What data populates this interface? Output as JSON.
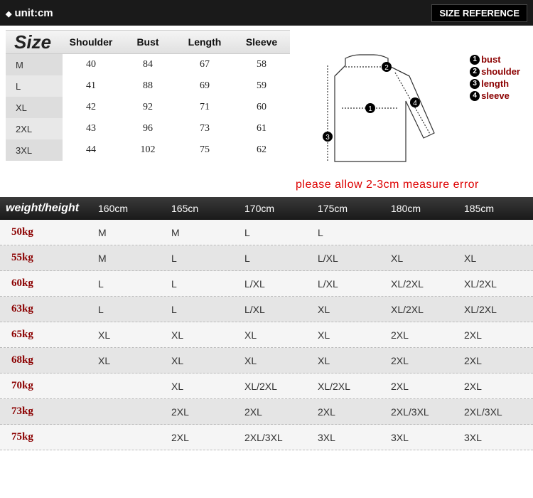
{
  "header": {
    "unit_label": "unit:cm",
    "size_reference": "SIZE REFERENCE"
  },
  "size_table": {
    "title": "Size",
    "columns": [
      "Shoulder",
      "Bust",
      "Length",
      "Sleeve"
    ],
    "rows": [
      {
        "size": "M",
        "shoulder": "40",
        "bust": "84",
        "length": "67",
        "sleeve": "58"
      },
      {
        "size": "L",
        "shoulder": "41",
        "bust": "88",
        "length": "69",
        "sleeve": "59"
      },
      {
        "size": "XL",
        "shoulder": "42",
        "bust": "92",
        "length": "71",
        "sleeve": "60"
      },
      {
        "size": "2XL",
        "shoulder": "43",
        "bust": "96",
        "length": "73",
        "sleeve": "61"
      },
      {
        "size": "3XL",
        "shoulder": "44",
        "bust": "102",
        "length": "75",
        "sleeve": "62"
      }
    ]
  },
  "legend": {
    "items": [
      {
        "num": "1",
        "label": "bust"
      },
      {
        "num": "2",
        "label": "shoulder"
      },
      {
        "num": "3",
        "label": "length"
      },
      {
        "num": "4",
        "label": "sleeve"
      }
    ]
  },
  "error_note": "please allow 2-3cm measure error",
  "weight_height": {
    "title": "weight/height",
    "heights": [
      "160cm",
      "165cn",
      "170cm",
      "175cm",
      "180cm",
      "185cm"
    ],
    "rows": [
      {
        "weight": "50kg",
        "cells": [
          "M",
          "M",
          "L",
          "L",
          "",
          ""
        ]
      },
      {
        "weight": "55kg",
        "cells": [
          "M",
          "L",
          "L",
          "L/XL",
          "XL",
          "XL"
        ]
      },
      {
        "weight": "60kg",
        "cells": [
          "L",
          "L",
          "L/XL",
          "L/XL",
          "XL/2XL",
          "XL/2XL"
        ]
      },
      {
        "weight": "63kg",
        "cells": [
          "L",
          "L",
          "L/XL",
          "XL",
          "XL/2XL",
          "XL/2XL"
        ]
      },
      {
        "weight": "65kg",
        "cells": [
          "XL",
          "XL",
          "XL",
          "XL",
          "2XL",
          "2XL"
        ]
      },
      {
        "weight": "68kg",
        "cells": [
          "XL",
          "XL",
          "XL",
          "XL",
          "2XL",
          "2XL"
        ]
      },
      {
        "weight": "70kg",
        "cells": [
          "",
          "XL",
          "XL/2XL",
          "XL/2XL",
          "2XL",
          "2XL"
        ]
      },
      {
        "weight": "73kg",
        "cells": [
          "",
          "2XL",
          "2XL",
          "2XL",
          "2XL/3XL",
          "2XL/3XL"
        ]
      },
      {
        "weight": "75kg",
        "cells": [
          "",
          "2XL",
          "2XL/3XL",
          "3XL",
          "3XL",
          "3XL"
        ]
      }
    ]
  },
  "colors": {
    "legend_text": "#8b0000",
    "error_text": "#d00",
    "header_bg": "#1a1a1a"
  }
}
